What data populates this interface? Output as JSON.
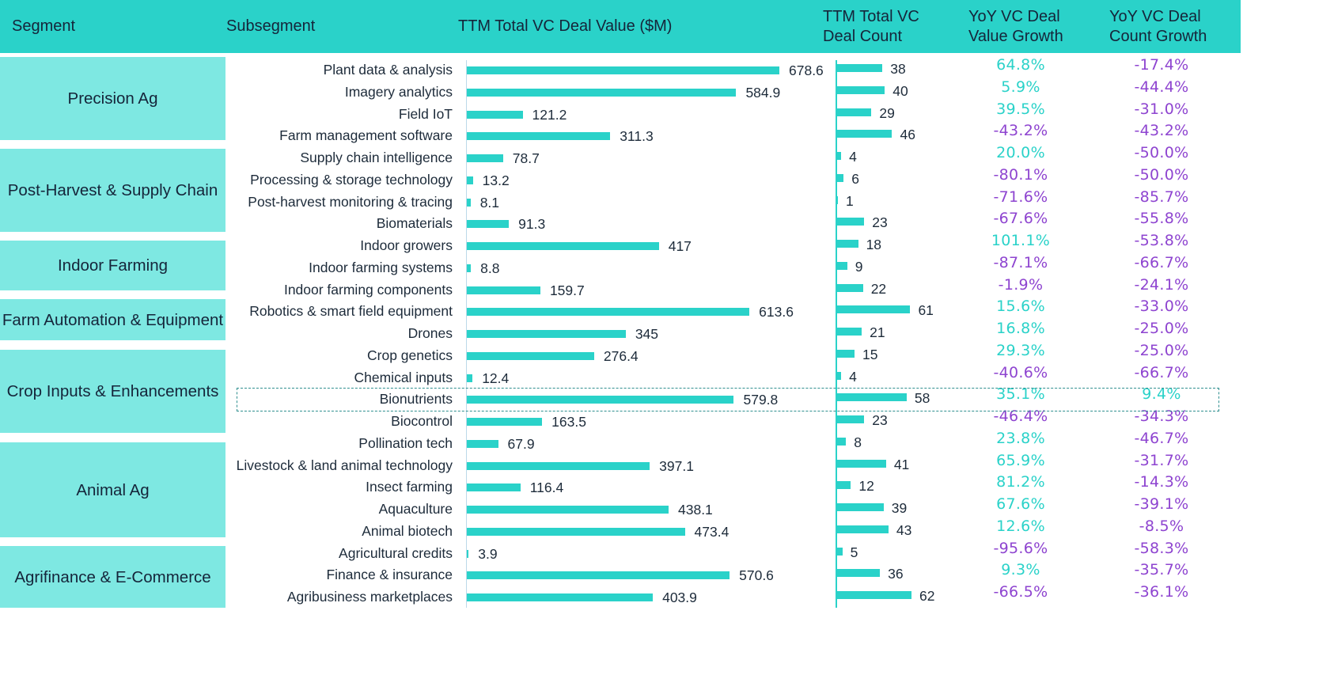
{
  "header": {
    "segment": "Segment",
    "subsegment": "Subsegment",
    "deal_value": "TTM Total VC Deal Value ($M)",
    "deal_count_line1": "TTM Total VC",
    "deal_count_line2": "Deal Count",
    "value_growth_line1": "YoY VC Deal",
    "value_growth_line2": "Value Growth",
    "count_growth_line1": "YoY VC Deal",
    "count_growth_line2": "Count Growth"
  },
  "colors": {
    "header": "#2ad2c9",
    "segment_fill": "#7ee8e2",
    "bar": "#2ad2c9",
    "positive": "#2ad2c9",
    "negative": "#8e44d0",
    "highlight_border": "#2f8f8f"
  },
  "segments": [
    {
      "name": "Precision Ag",
      "rows": [
        0,
        3
      ]
    },
    {
      "name": "Post-Harvest & Supply Chain",
      "rows": [
        4,
        7
      ]
    },
    {
      "name": "Indoor Farming",
      "rows": [
        8,
        10
      ]
    },
    {
      "name": "Farm Automation & Equipment",
      "rows": [
        11,
        12
      ]
    },
    {
      "name": "Crop Inputs & Enhancements",
      "rows": [
        13,
        17
      ]
    },
    {
      "name": "Animal Ag",
      "rows": [
        18,
        21
      ]
    },
    {
      "name": "Agrifinance & E-Commerce",
      "rows": [
        22,
        24
      ]
    }
  ],
  "highlighted_row": "Bionutrients",
  "chart_data": {
    "type": "table",
    "title": "",
    "columns": [
      "Segment",
      "Subsegment",
      "TTM Total VC Deal Value ($M)",
      "TTM Total VC Deal Count",
      "YoY VC Deal Value Growth",
      "YoY VC Deal Count Growth"
    ],
    "rows": [
      {
        "segment": "Precision Ag",
        "subsegment": "Plant data & analysis",
        "value": 678.6,
        "value_label": "678.6",
        "count": 38,
        "value_growth": "64.8%",
        "count_growth": "-17.4%"
      },
      {
        "segment": "Precision Ag",
        "subsegment": "Imagery analytics",
        "value": 584.9,
        "value_label": "584.9",
        "count": 40,
        "value_growth": "5.9%",
        "count_growth": "-44.4%"
      },
      {
        "segment": "Precision Ag",
        "subsegment": "Field IoT",
        "value": 121.2,
        "value_label": "121.2",
        "count": 29,
        "value_growth": "39.5%",
        "count_growth": "-31.0%"
      },
      {
        "segment": "Precision Ag",
        "subsegment": "Farm management software",
        "value": 311.3,
        "value_label": "311.3",
        "count": 46,
        "value_growth": "-43.2%",
        "count_growth": "-43.2%"
      },
      {
        "segment": "Post-Harvest & Supply Chain",
        "subsegment": "Supply chain intelligence",
        "value": 78.7,
        "value_label": "78.7",
        "count": 4,
        "value_growth": "20.0%",
        "count_growth": "-50.0%"
      },
      {
        "segment": "Post-Harvest & Supply Chain",
        "subsegment": "Processing & storage technology",
        "value": 13.2,
        "value_label": "13.2",
        "count": 6,
        "value_growth": "-80.1%",
        "count_growth": "-50.0%"
      },
      {
        "segment": "Post-Harvest & Supply Chain",
        "subsegment": "Post-harvest monitoring & tracing",
        "value": 8.1,
        "value_label": "8.1",
        "count": 1,
        "value_growth": "-71.6%",
        "count_growth": "-85.7%"
      },
      {
        "segment": "Post-Harvest & Supply Chain",
        "subsegment": "Biomaterials",
        "value": 91.3,
        "value_label": "91.3",
        "count": 23,
        "value_growth": "-67.6%",
        "count_growth": "-55.8%"
      },
      {
        "segment": "Indoor Farming",
        "subsegment": "Indoor growers",
        "value": 417,
        "value_label": "417",
        "count": 18,
        "value_growth": "101.1%",
        "count_growth": "-53.8%"
      },
      {
        "segment": "Indoor Farming",
        "subsegment": "Indoor farming systems",
        "value": 8.8,
        "value_label": "8.8",
        "count": 9,
        "value_growth": "-87.1%",
        "count_growth": "-66.7%"
      },
      {
        "segment": "Indoor Farming",
        "subsegment": "Indoor farming components",
        "value": 159.7,
        "value_label": "159.7",
        "count": 22,
        "value_growth": "-1.9%",
        "count_growth": "-24.1%"
      },
      {
        "segment": "Farm Automation & Equipment",
        "subsegment": "Robotics & smart field equipment",
        "value": 613.6,
        "value_label": "613.6",
        "count": 61,
        "value_growth": "15.6%",
        "count_growth": "-33.0%"
      },
      {
        "segment": "Farm Automation & Equipment",
        "subsegment": "Drones",
        "value": 345,
        "value_label": "345",
        "count": 21,
        "value_growth": "16.8%",
        "count_growth": "-25.0%"
      },
      {
        "segment": "Crop Inputs & Enhancements",
        "subsegment": "Crop genetics",
        "value": 276.4,
        "value_label": "276.4",
        "count": 15,
        "value_growth": "29.3%",
        "count_growth": "-25.0%"
      },
      {
        "segment": "Crop Inputs & Enhancements",
        "subsegment": "Chemical inputs",
        "value": 12.4,
        "value_label": "12.4",
        "count": 4,
        "value_growth": "-40.6%",
        "count_growth": "-66.7%"
      },
      {
        "segment": "Crop Inputs & Enhancements",
        "subsegment": "Bionutrients",
        "value": 579.8,
        "value_label": "579.8",
        "count": 58,
        "value_growth": "35.1%",
        "count_growth": "9.4%"
      },
      {
        "segment": "Crop Inputs & Enhancements",
        "subsegment": "Biocontrol",
        "value": 163.5,
        "value_label": "163.5",
        "count": 23,
        "value_growth": "-46.4%",
        "count_growth": "-34.3%"
      },
      {
        "segment": "Crop Inputs & Enhancements",
        "subsegment": "Pollination tech",
        "value": 67.9,
        "value_label": "67.9",
        "count": 8,
        "value_growth": "23.8%",
        "count_growth": "-46.7%"
      },
      {
        "segment": "Animal Ag",
        "subsegment": "Livestock & land animal technology",
        "value": 397.1,
        "value_label": "397.1",
        "count": 41,
        "value_growth": "65.9%",
        "count_growth": "-31.7%"
      },
      {
        "segment": "Animal Ag",
        "subsegment": "Insect farming",
        "value": 116.4,
        "value_label": "116.4",
        "count": 12,
        "value_growth": "81.2%",
        "count_growth": "-14.3%"
      },
      {
        "segment": "Animal Ag",
        "subsegment": "Aquaculture",
        "value": 438.1,
        "value_label": "438.1",
        "count": 39,
        "value_growth": "67.6%",
        "count_growth": "-39.1%"
      },
      {
        "segment": "Animal Ag",
        "subsegment": "Animal biotech",
        "value": 473.4,
        "value_label": "473.4",
        "count": 43,
        "value_growth": "12.6%",
        "count_growth": "-8.5%"
      },
      {
        "segment": "Agrifinance & E-Commerce",
        "subsegment": "Agricultural credits",
        "value": 3.9,
        "value_label": "3.9",
        "count": 5,
        "value_growth": "-95.6%",
        "count_growth": "-58.3%"
      },
      {
        "segment": "Agrifinance & E-Commerce",
        "subsegment": "Finance & insurance",
        "value": 570.6,
        "value_label": "570.6",
        "count": 36,
        "value_growth": "9.3%",
        "count_growth": "-35.7%"
      },
      {
        "segment": "Agrifinance & E-Commerce",
        "subsegment": "Agribusiness marketplaces",
        "value": 403.9,
        "value_label": "403.9",
        "count": 62,
        "value_growth": "-66.5%",
        "count_growth": "-36.1%"
      }
    ]
  }
}
